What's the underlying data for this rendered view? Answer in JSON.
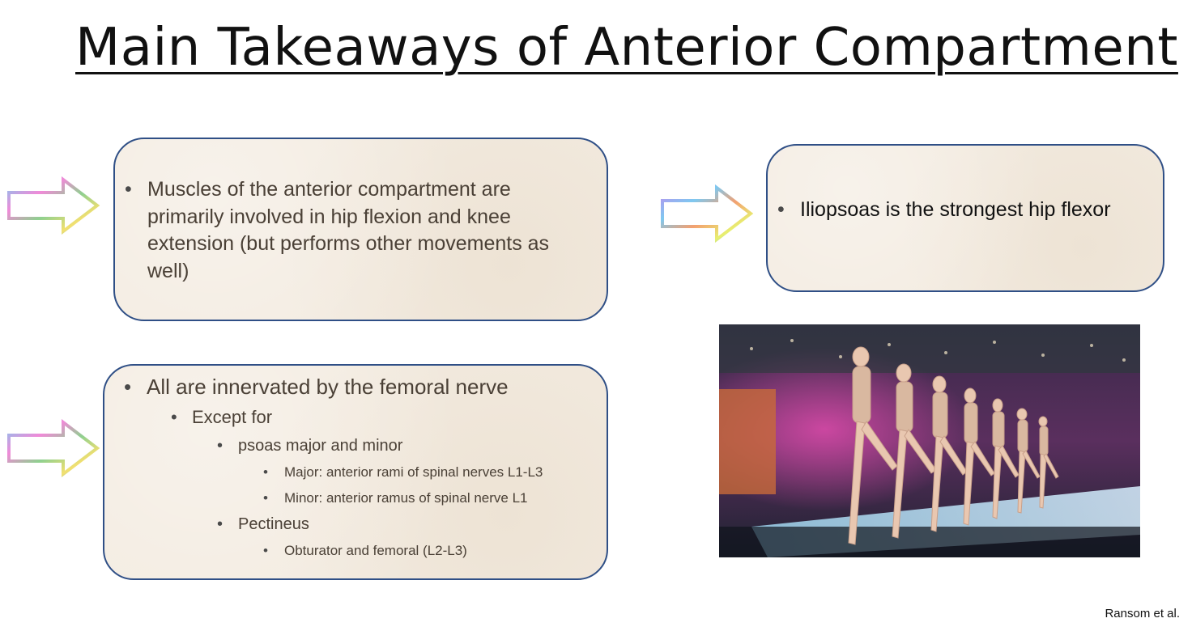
{
  "title": "Main Takeaways of Anterior Compartment",
  "box_muscles": {
    "bullet": "Muscles of the anterior compartment are primarily involved in hip flexion and knee extension (but performs other movements as well)"
  },
  "box_iliopsoas": {
    "bullet": "Iliopsoas is the strongest hip flexor"
  },
  "box_innervation": {
    "main": "All are innervated by the femoral nerve",
    "except": "Except for",
    "psoas": "psoas major and minor",
    "psoas_major": "Major: anterior rami of spinal nerves L1-L3",
    "psoas_minor": "Minor: anterior ramus of spinal nerve L1",
    "pectineus": "Pectineus",
    "pectineus_detail": "Obturator and femoral (L2-L3)"
  },
  "citation": "Ransom et al.",
  "colors": {
    "box_border": "#2f4f86",
    "box_fill": "#f3ebe0",
    "body_text": "#4a4036"
  }
}
